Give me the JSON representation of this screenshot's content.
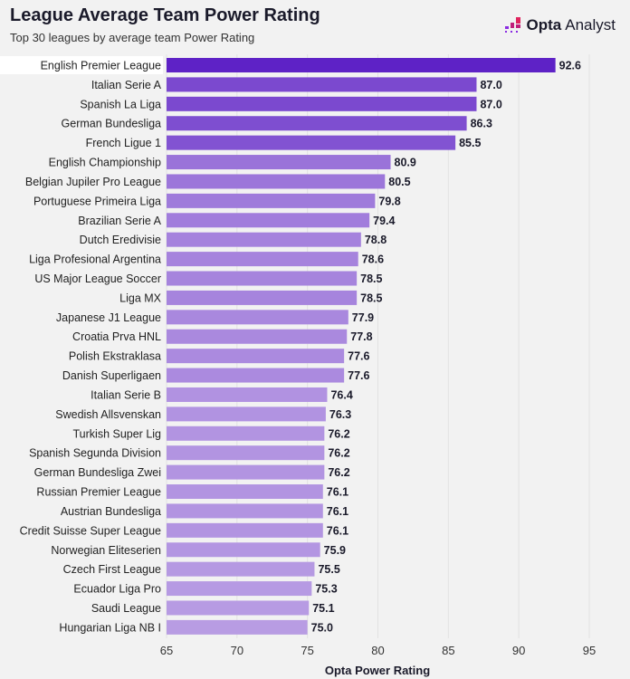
{
  "header": {
    "title": "League Average Team Power Rating",
    "subtitle": "Top 30 leagues by average team Power Rating",
    "logo_bold": "Opta",
    "logo_light": "Analyst"
  },
  "chart_data": {
    "type": "bar",
    "orientation": "horizontal",
    "xlabel": "Opta Power Rating",
    "xlim": [
      65,
      95
    ],
    "xticks": [
      65,
      70,
      75,
      80,
      85,
      90,
      95
    ],
    "grid": true,
    "colors": {
      "high": "#5e22c6",
      "low": "#b89ce3"
    },
    "categories": [
      "English Premier League",
      "Italian Serie A",
      "Spanish La Liga",
      "German Bundesliga",
      "French Ligue 1",
      "English Championship",
      "Belgian Jupiler Pro League",
      "Portuguese Primeira Liga",
      "Brazilian Serie A",
      "Dutch Eredivisie",
      "Liga Profesional Argentina",
      "US Major League Soccer",
      "Liga MX",
      "Japanese J1 League",
      "Croatia Prva HNL",
      "Polish Ekstraklasa",
      "Danish Superligaen",
      "Italian Serie B",
      "Swedish Allsvenskan",
      "Turkish Super Lig",
      "Spanish Segunda Division",
      "German Bundesliga Zwei",
      "Russian Premier League",
      "Austrian Bundesliga",
      "Credit Suisse Super League",
      "Norwegian Eliteserien",
      "Czech First League",
      "Ecuador Liga Pro",
      "Saudi League",
      "Hungarian Liga NB I"
    ],
    "values": [
      92.6,
      87.0,
      87.0,
      86.3,
      85.5,
      80.9,
      80.5,
      79.8,
      79.4,
      78.8,
      78.6,
      78.5,
      78.5,
      77.9,
      77.8,
      77.6,
      77.6,
      76.4,
      76.3,
      76.2,
      76.2,
      76.2,
      76.1,
      76.1,
      76.1,
      75.9,
      75.5,
      75.3,
      75.1,
      75.0
    ]
  }
}
